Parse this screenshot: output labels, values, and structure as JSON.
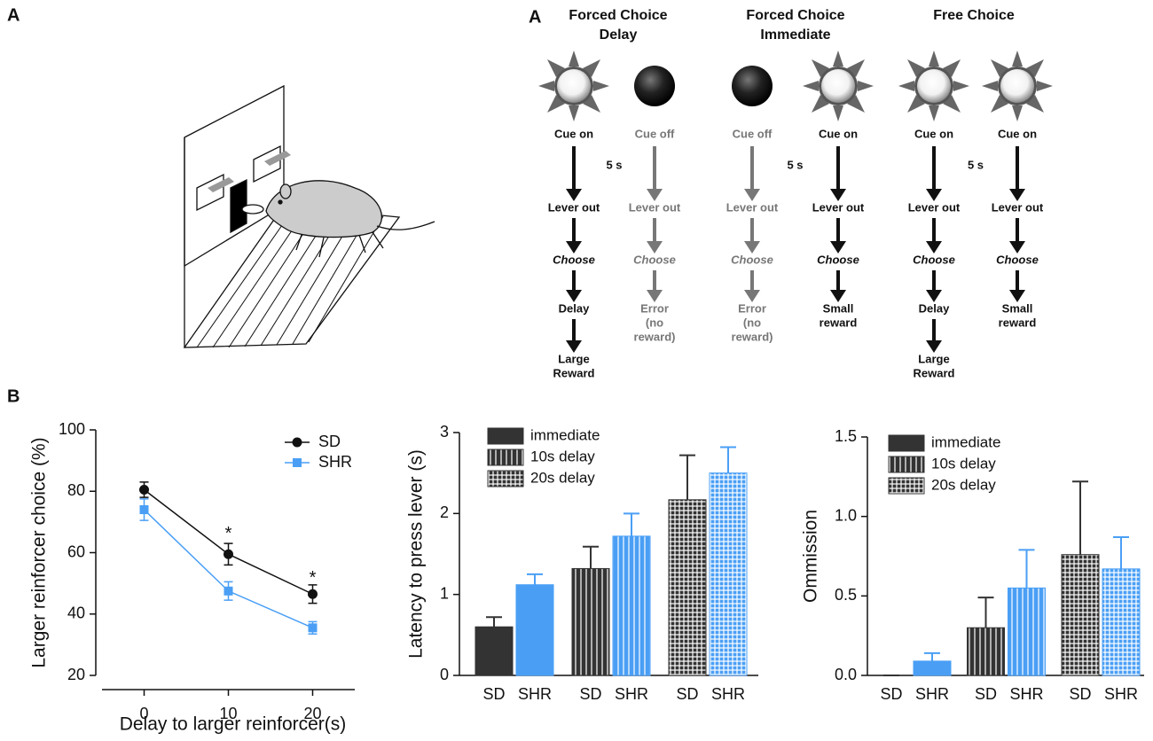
{
  "panel_labels": {
    "a_left": "A",
    "a_right": "A",
    "b": "B"
  },
  "diagram": {
    "groups": [
      {
        "title": [
          "Forced Choice",
          "Delay"
        ],
        "interval": "5 s"
      },
      {
        "title": [
          "Forced Choice",
          "Immediate"
        ],
        "interval": "5 s"
      },
      {
        "title": [
          "Free Choice"
        ],
        "interval": "5 s"
      }
    ],
    "columns": [
      {
        "icon": "on",
        "active": true,
        "cue": "Cue on",
        "steps": [
          [
            "Lever out"
          ],
          [
            "Choose"
          ],
          [
            "Delay"
          ],
          [
            "Large",
            "Reward"
          ]
        ]
      },
      {
        "icon": "off",
        "active": false,
        "cue": "Cue off",
        "steps": [
          [
            "Lever out"
          ],
          [
            "Choose"
          ],
          [
            "Error",
            "(no",
            "reward)"
          ]
        ]
      },
      {
        "icon": "off",
        "active": false,
        "cue": "Cue off",
        "steps": [
          [
            "Lever out"
          ],
          [
            "Choose"
          ],
          [
            "Error",
            "(no",
            "reward)"
          ]
        ]
      },
      {
        "icon": "on",
        "active": true,
        "cue": "Cue on",
        "steps": [
          [
            "Lever out"
          ],
          [
            "Choose"
          ],
          [
            "Small",
            "reward"
          ]
        ]
      },
      {
        "icon": "on",
        "active": true,
        "cue": "Cue on",
        "steps": [
          [
            "Lever out"
          ],
          [
            "Choose"
          ],
          [
            "Delay"
          ],
          [
            "Large",
            "Reward"
          ]
        ]
      },
      {
        "icon": "on",
        "active": true,
        "cue": "Cue on",
        "steps": [
          [
            "Lever out"
          ],
          [
            "Choose"
          ],
          [
            "Small",
            "reward"
          ]
        ]
      }
    ]
  },
  "chart_data": [
    {
      "type": "line",
      "x_label": "Delay to larger reinforcer(s)",
      "y_label": "Larger reinforcer choice (%)",
      "x": [
        0,
        10,
        20
      ],
      "xlim": [
        -5,
        25
      ],
      "xticks": [
        0,
        10,
        20
      ],
      "ylim": [
        20,
        100
      ],
      "yticks": [
        20,
        40,
        60,
        80,
        100
      ],
      "legend": "top-right",
      "series": [
        {
          "name": "SD",
          "color": "#111111",
          "marker": "circle",
          "values": [
            80.5,
            59.5,
            46.5
          ],
          "errors": [
            2.5,
            3.5,
            3
          ]
        },
        {
          "name": "SHR",
          "color": "#4a9ff5",
          "marker": "square",
          "values": [
            74,
            47.5,
            35.5
          ],
          "errors": [
            3.5,
            3,
            2
          ]
        }
      ],
      "annotations": [
        {
          "text": "*",
          "x": 10,
          "y": 66
        },
        {
          "text": "*",
          "x": 20,
          "y": 51.5
        }
      ]
    },
    {
      "type": "bar",
      "y_label": "Latency to press lever (s)",
      "categories": [
        "SD",
        "SHR"
      ],
      "category_colors": [
        "#333333",
        "#4a9ff5"
      ],
      "ylim": [
        0,
        3
      ],
      "yticks": [
        0,
        1,
        2,
        3
      ],
      "legend": "top-left",
      "series": [
        {
          "name": "immediate",
          "pattern": "solid",
          "values": [
            0.6,
            1.12
          ],
          "errors": [
            0.12,
            0.13
          ]
        },
        {
          "name": "10s delay",
          "pattern": "vertical",
          "values": [
            1.32,
            1.72
          ],
          "errors": [
            0.27,
            0.28
          ]
        },
        {
          "name": "20s delay",
          "pattern": "grid",
          "values": [
            2.17,
            2.5
          ],
          "errors": [
            0.55,
            0.32
          ]
        }
      ]
    },
    {
      "type": "bar",
      "y_label": "Ommission",
      "categories": [
        "SD",
        "SHR"
      ],
      "category_colors": [
        "#333333",
        "#4a9ff5"
      ],
      "ylim": [
        0,
        1.5
      ],
      "yticks": [
        {
          "value": 0,
          "label": "0.0"
        },
        0.5,
        {
          "value": 1,
          "label": "1.0"
        },
        1.5
      ],
      "legend": "top-left",
      "series": [
        {
          "name": "immediate",
          "pattern": "solid",
          "values": [
            0,
            0.09
          ],
          "errors": [
            0,
            0.05
          ]
        },
        {
          "name": "10s delay",
          "pattern": "vertical",
          "values": [
            0.3,
            0.55
          ],
          "errors": [
            0.19,
            0.24
          ]
        },
        {
          "name": "20s delay",
          "pattern": "grid",
          "values": [
            0.76,
            0.67
          ],
          "errors": [
            0.46,
            0.2
          ]
        }
      ]
    }
  ]
}
